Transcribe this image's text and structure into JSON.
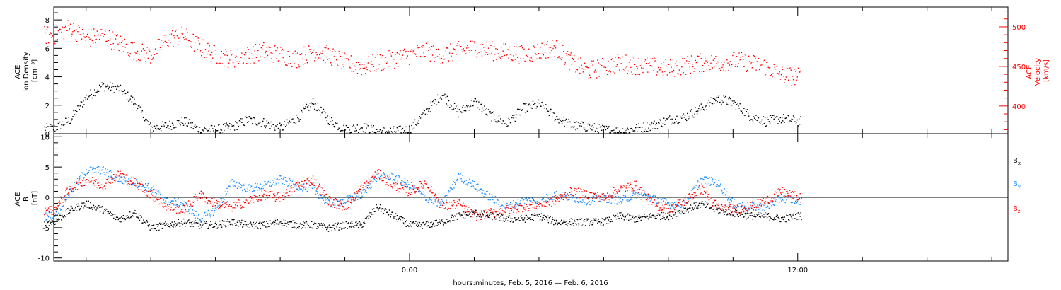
{
  "colors": {
    "density": "#000000",
    "velocity": "#ff0000",
    "bx": "#000000",
    "by": "#1a8cff",
    "bz": "#ff0000",
    "axes": "#000000"
  },
  "chart_data": [
    {
      "type": "scatter",
      "panel": "top",
      "ylabel_lines": [
        "ACE",
        "Ion Density",
        "[cm⁻³]"
      ],
      "ylabel_right_lines": [
        "ACE",
        "Velocity",
        "[km/s]"
      ],
      "yticks_left": [
        "0",
        "2",
        "4",
        "6",
        "8"
      ],
      "ylim_left": [
        0,
        8.9
      ],
      "yticks_right": [
        "400",
        "450",
        "500"
      ],
      "ylim_right": [
        365,
        525
      ],
      "xlim_hours": [
        -11,
        18.5
      ],
      "series": [
        {
          "key": "density",
          "axis": "left",
          "x_hours": [
            -11.0,
            -10.5,
            -10.0,
            -9.5,
            -9.0,
            -8.5,
            -8.0,
            -7.5,
            -7.0,
            -6.5,
            -6.0,
            -5.5,
            -5.0,
            -4.5,
            -4.0,
            -3.5,
            -3.0,
            -2.5,
            -2.0,
            -1.5,
            -1.0,
            -0.5,
            0.0,
            0.5,
            1.0,
            1.5,
            2.0,
            2.5,
            3.0,
            3.5,
            4.0,
            4.5,
            5.0,
            5.5,
            6.0,
            6.5,
            7.0,
            7.5,
            8.0,
            8.5,
            9.0,
            9.5,
            10.0,
            10.5,
            11.0,
            11.5,
            12.0
          ],
          "values": [
            0.4,
            1.0,
            2.6,
            3.4,
            3.2,
            2.2,
            0.4,
            0.6,
            0.9,
            0.3,
            0.3,
            0.5,
            1.0,
            0.8,
            0.4,
            1.1,
            2.2,
            1.0,
            0.3,
            0.5,
            0.2,
            0.2,
            0.3,
            1.6,
            2.8,
            1.5,
            2.3,
            1.3,
            0.7,
            1.8,
            2.1,
            1.2,
            0.6,
            0.5,
            0.3,
            0.2,
            0.4,
            0.6,
            1.0,
            1.2,
            1.8,
            2.5,
            2.2,
            1.3,
            0.9,
            1.1,
            0.9
          ]
        },
        {
          "key": "velocity",
          "axis": "right",
          "x_hours": [
            -11.0,
            -10.5,
            -10.0,
            -9.5,
            -9.0,
            -8.5,
            -8.0,
            -7.5,
            -7.0,
            -6.5,
            -6.0,
            -5.5,
            -5.0,
            -4.5,
            -4.0,
            -3.5,
            -3.0,
            -2.5,
            -2.0,
            -1.5,
            -1.0,
            -0.5,
            0.0,
            0.5,
            1.0,
            1.5,
            2.0,
            2.5,
            3.0,
            3.5,
            4.0,
            4.5,
            5.0,
            5.5,
            6.0,
            6.5,
            7.0,
            7.5,
            8.0,
            8.5,
            9.0,
            9.5,
            10.0,
            10.5,
            11.0,
            11.5,
            12.0
          ],
          "values": [
            490,
            500,
            485,
            490,
            480,
            470,
            465,
            485,
            490,
            475,
            465,
            460,
            465,
            470,
            465,
            460,
            470,
            465,
            455,
            450,
            455,
            460,
            465,
            470,
            465,
            470,
            475,
            470,
            468,
            465,
            470,
            475,
            455,
            445,
            450,
            455,
            452,
            450,
            448,
            452,
            455,
            455,
            458,
            455,
            450,
            440,
            437
          ]
        }
      ]
    },
    {
      "type": "scatter",
      "panel": "bottom",
      "ylabel_lines": [
        "ACE",
        "B",
        "[nT]"
      ],
      "yticks": [
        "-10",
        "-5",
        "0",
        "5",
        "10"
      ],
      "ylim": [
        -10.5,
        10.5
      ],
      "zero_line": true,
      "xlim_hours": [
        -11,
        18.5
      ],
      "xticks": [
        "0:00",
        "12:00"
      ],
      "xlabel": "hours:minutes, Feb.  5, 2016 — Feb.  6, 2016",
      "legend": [
        {
          "key": "bx",
          "label": "B",
          "sub": "x"
        },
        {
          "key": "by",
          "label": "B",
          "sub": "y"
        },
        {
          "key": "bz",
          "label": "B",
          "sub": "z"
        }
      ],
      "series": [
        {
          "key": "bx",
          "x_hours": [
            -11.0,
            -10.5,
            -10.0,
            -9.5,
            -9.0,
            -8.5,
            -8.0,
            -7.5,
            -7.0,
            -6.5,
            -6.0,
            -5.5,
            -5.0,
            -4.5,
            -4.0,
            -3.5,
            -3.0,
            -2.5,
            -2.0,
            -1.5,
            -1.0,
            -0.5,
            0.0,
            0.5,
            1.0,
            1.5,
            2.0,
            2.5,
            3.0,
            3.5,
            4.0,
            4.5,
            5.0,
            5.5,
            6.0,
            6.5,
            7.0,
            7.5,
            8.0,
            8.5,
            9.0,
            9.5,
            10.0,
            10.5,
            11.0,
            11.5,
            12.0
          ],
          "values": [
            -4.0,
            -2.0,
            -1.0,
            -2.0,
            -3.5,
            -2.5,
            -5.0,
            -4.5,
            -4.0,
            -4.5,
            -4.5,
            -4.0,
            -4.5,
            -4.5,
            -4.0,
            -4.5,
            -4.5,
            -5.0,
            -4.5,
            -4.5,
            -1.5,
            -3.0,
            -4.5,
            -4.5,
            -4.0,
            -3.0,
            -2.5,
            -3.0,
            -3.5,
            -3.5,
            -3.0,
            -4.0,
            -4.0,
            -4.0,
            -4.0,
            -3.0,
            -3.5,
            -3.0,
            -3.0,
            -2.0,
            -1.0,
            -2.0,
            -2.5,
            -3.0,
            -3.0,
            -3.5,
            -3.0
          ]
        },
        {
          "key": "by",
          "x_hours": [
            -11.0,
            -10.5,
            -10.0,
            -9.5,
            -9.0,
            -8.5,
            -8.0,
            -7.5,
            -7.0,
            -6.5,
            -6.0,
            -5.5,
            -5.0,
            -4.5,
            -4.0,
            -3.5,
            -3.0,
            -2.5,
            -2.0,
            -1.5,
            -1.0,
            -0.5,
            0.0,
            0.5,
            1.0,
            1.5,
            2.0,
            2.5,
            3.0,
            3.5,
            4.0,
            4.5,
            5.0,
            5.5,
            6.0,
            6.5,
            7.0,
            7.5,
            8.0,
            8.5,
            9.0,
            9.5,
            10.0,
            10.5,
            11.0,
            11.5,
            12.0
          ],
          "values": [
            -3.0,
            1.0,
            4.5,
            4.5,
            3.0,
            2.5,
            1.5,
            -0.5,
            -1.0,
            -3.5,
            -2.0,
            2.5,
            1.5,
            2.0,
            3.0,
            2.0,
            1.5,
            -1.0,
            -0.5,
            0.5,
            3.5,
            3.5,
            2.0,
            0.0,
            -1.0,
            3.5,
            2.0,
            0.0,
            -1.5,
            -0.5,
            -0.5,
            0.5,
            0.0,
            -0.5,
            0.0,
            -0.5,
            0.5,
            0.0,
            -1.0,
            -1.0,
            3.0,
            2.5,
            -1.0,
            -1.5,
            -1.5,
            0.0,
            -0.5
          ]
        },
        {
          "key": "bz",
          "x_hours": [
            -11.0,
            -10.5,
            -10.0,
            -9.5,
            -9.0,
            -8.5,
            -8.0,
            -7.5,
            -7.0,
            -6.5,
            -6.0,
            -5.5,
            -5.0,
            -4.5,
            -4.0,
            -3.5,
            -3.0,
            -2.5,
            -2.0,
            -1.5,
            -1.0,
            -0.5,
            0.0,
            0.5,
            1.0,
            1.5,
            2.0,
            2.5,
            3.0,
            3.5,
            4.0,
            4.5,
            5.0,
            5.5,
            6.0,
            6.5,
            7.0,
            7.5,
            8.0,
            8.5,
            9.0,
            9.5,
            10.0,
            10.5,
            11.0,
            11.5,
            12.0
          ],
          "values": [
            -2.0,
            1.5,
            3.0,
            2.0,
            4.0,
            2.5,
            0.5,
            -1.5,
            -2.0,
            0.5,
            -1.0,
            -1.5,
            -0.5,
            0.5,
            0.0,
            2.0,
            3.0,
            -0.5,
            -1.5,
            1.5,
            4.0,
            2.0,
            1.0,
            2.5,
            -1.5,
            -1.0,
            -3.0,
            -2.5,
            -2.0,
            -1.5,
            -1.0,
            -0.5,
            1.0,
            0.5,
            0.0,
            1.5,
            2.0,
            -1.0,
            -2.0,
            -0.5,
            1.5,
            -1.5,
            -2.0,
            -1.5,
            -0.5,
            1.0,
            0.0
          ]
        }
      ]
    }
  ]
}
